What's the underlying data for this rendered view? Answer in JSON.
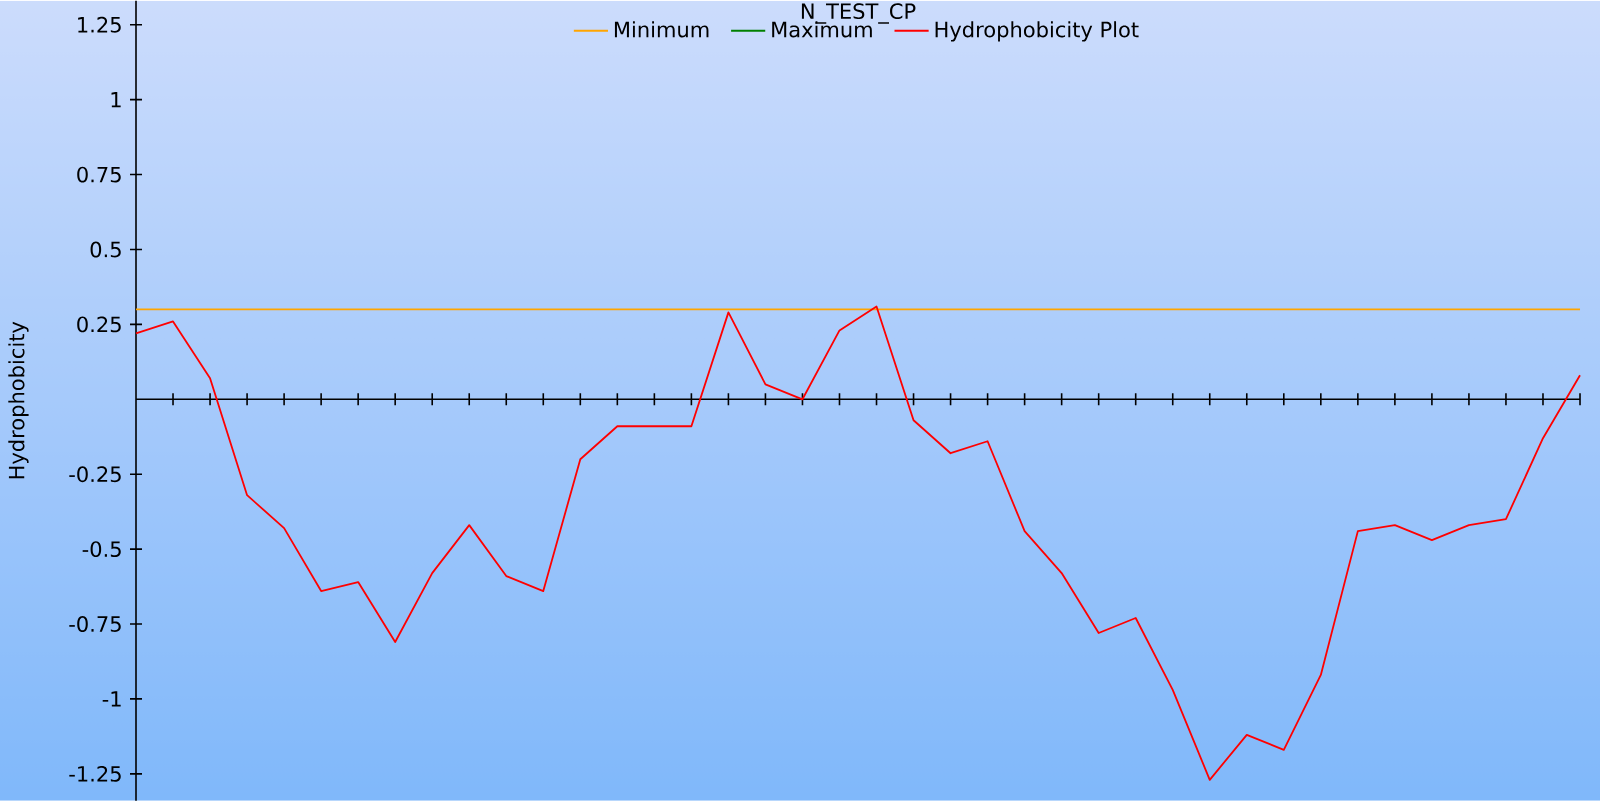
{
  "chart_data": {
    "type": "line",
    "title": "N_TEST_CP",
    "ylabel": "Hydrophobicity",
    "categories": [
      null,
      null,
      null,
      null,
      null,
      null,
      null,
      null,
      null,
      null,
      null,
      null,
      null,
      null,
      null,
      null,
      null,
      null,
      null,
      null,
      null,
      null,
      null,
      null,
      null,
      null,
      null,
      null,
      null,
      null,
      null,
      null,
      null,
      null,
      null,
      null,
      null,
      null,
      null,
      null
    ],
    "series": [
      {
        "name": "Minimum",
        "color": "#ffa500",
        "values": [
          0.3,
          0.3,
          0.3,
          0.3,
          0.3,
          0.3,
          0.3,
          0.3,
          0.3,
          0.3,
          0.3,
          0.3,
          0.3,
          0.3,
          0.3,
          0.3,
          0.3,
          0.3,
          0.3,
          0.3,
          0.3,
          0.3,
          0.3,
          0.3,
          0.3,
          0.3,
          0.3,
          0.3,
          0.3,
          0.3,
          0.3,
          0.3,
          0.3,
          0.3,
          0.3,
          0.3,
          0.3,
          0.3,
          0.3,
          0.3
        ]
      },
      {
        "name": "Maximum",
        "color": "#008000",
        "values": [
          null,
          null,
          null,
          null,
          null,
          null,
          null,
          null,
          null,
          null,
          null,
          null,
          null,
          null,
          null,
          null,
          null,
          null,
          null,
          null,
          null,
          null,
          null,
          null,
          null,
          null,
          null,
          null,
          null,
          null,
          null,
          null,
          null,
          null,
          null,
          null,
          null,
          null,
          null,
          null
        ]
      },
      {
        "name": "Hydrophobicity Plot",
        "color": "#ff0000",
        "values": [
          0.22,
          0.26,
          0.07,
          -0.32,
          -0.43,
          -0.64,
          -0.61,
          -0.81,
          -0.58,
          -0.42,
          -0.59,
          -0.64,
          -0.2,
          -0.09,
          -0.09,
          -0.09,
          0.29,
          0.05,
          0.0,
          0.23,
          0.31,
          -0.07,
          -0.18,
          -0.14,
          -0.44,
          -0.58,
          -0.78,
          -0.73,
          -0.97,
          -1.27,
          -1.12,
          -1.17,
          -0.92,
          -0.44,
          -0.42,
          -0.47,
          -0.42,
          -0.4,
          -0.13,
          0.08
        ]
      }
    ],
    "ylim": [
      -1.34,
      1.33
    ],
    "yticks": [
      1.25,
      1,
      0.75,
      0.5,
      0.25,
      -0.25,
      -0.5,
      -0.75,
      -1,
      -1.25
    ],
    "grid": false,
    "legend": "top",
    "marker": "none",
    "line_style": "solid"
  }
}
